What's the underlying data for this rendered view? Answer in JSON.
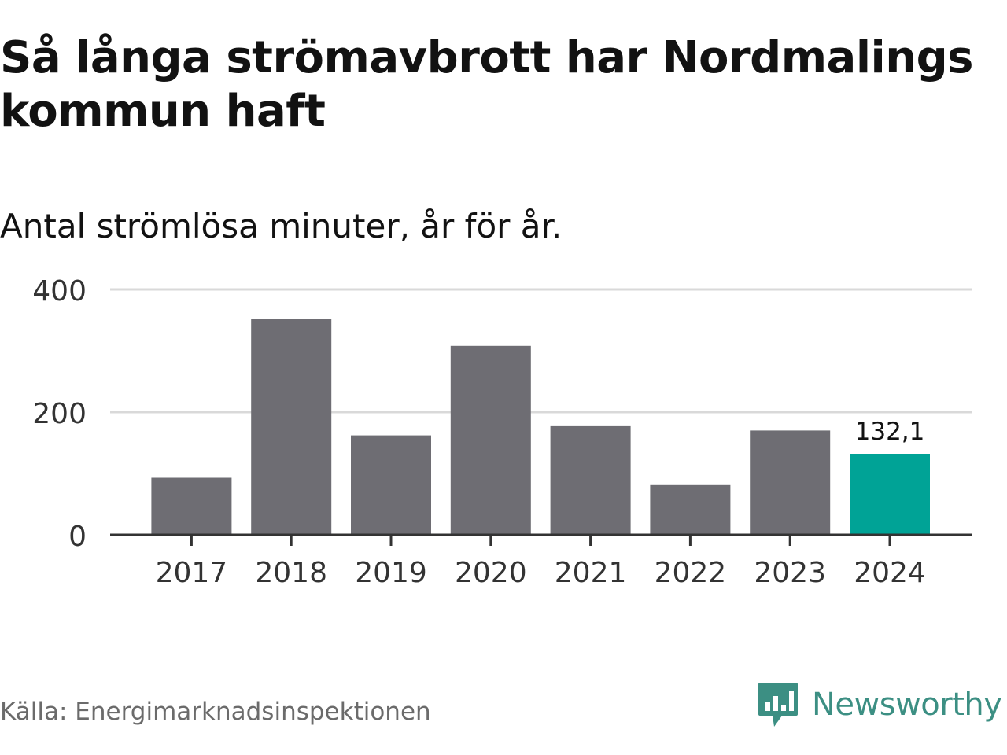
{
  "header": {
    "title": "Så långa strömavbrott har Nordmalings kommun haft",
    "subtitle": "Antal strömlösa minuter, år för år."
  },
  "footer": {
    "source": "Källa: Energimarknadsinspektionen",
    "brand": "Newsworthy",
    "brand_icon": "newsworthy-chart-logo-icon"
  },
  "colors": {
    "bar": "#6e6d73",
    "highlight": "#00a396",
    "grid": "#d9d9d9",
    "axis": "#333333",
    "brand": "#3c8f83"
  },
  "chart_data": {
    "type": "bar",
    "title": "Så långa strömavbrott har Nordmalings kommun haft",
    "subtitle": "Antal strömlösa minuter, år för år.",
    "xlabel": "",
    "ylabel": "",
    "categories": [
      "2017",
      "2018",
      "2019",
      "2020",
      "2021",
      "2022",
      "2023",
      "2024"
    ],
    "values": [
      93,
      352,
      162,
      308,
      177,
      81,
      170,
      132.1
    ],
    "highlight_index": 7,
    "data_labels": [
      {
        "index": 7,
        "text": "132,1"
      }
    ],
    "ylim": [
      0,
      400
    ],
    "yticks": [
      0,
      200,
      400
    ],
    "ytick_labels": [
      "0",
      "200",
      "400"
    ],
    "grid": true,
    "legend": "none"
  }
}
